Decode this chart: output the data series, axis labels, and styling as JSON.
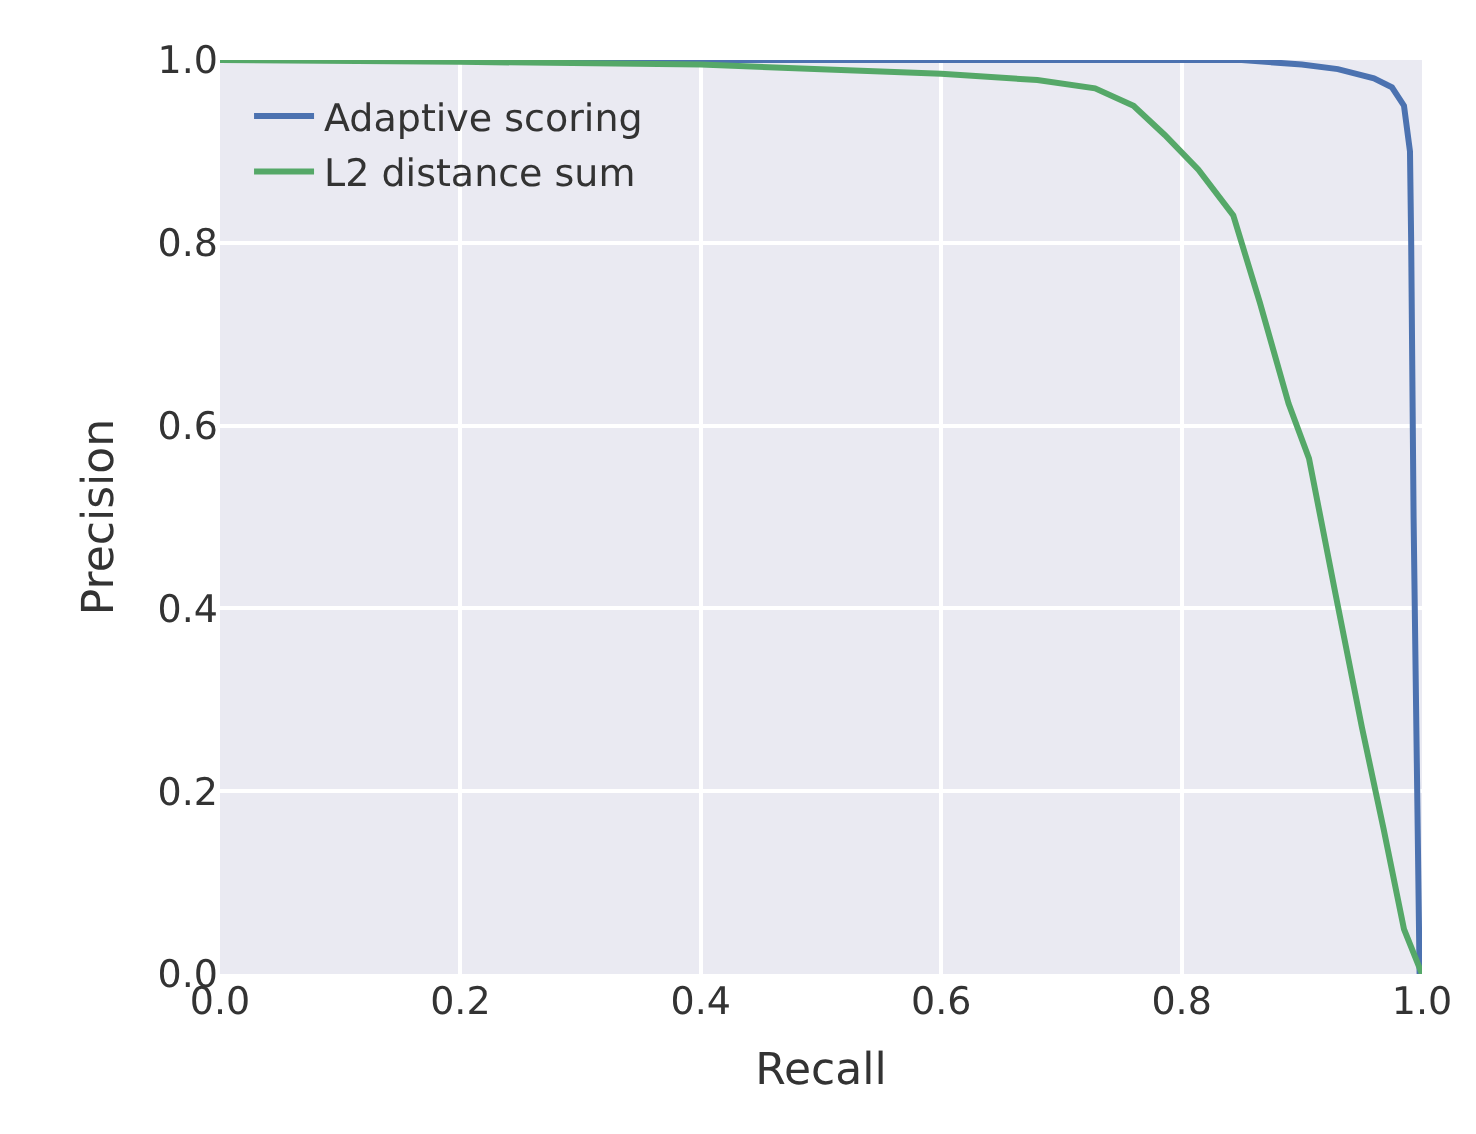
{
  "chart_data": {
    "type": "line",
    "xlabel": "Recall",
    "ylabel": "Precision",
    "xlim": [
      0,
      1
    ],
    "ylim": [
      0,
      1
    ],
    "xticks": [
      {
        "value": 0,
        "label": "0.0"
      },
      0.2,
      0.4,
      0.6,
      0.8,
      {
        "value": 1,
        "label": "1.0"
      }
    ],
    "yticks": [
      {
        "value": 0,
        "label": "0.0"
      },
      0.2,
      0.4,
      0.6,
      0.8,
      {
        "value": 1,
        "label": "1.0"
      }
    ],
    "grid": true,
    "legend": "top left",
    "series": [
      {
        "name": "Adaptive scoring",
        "color": "#4c72b0",
        "x": [
          0,
          0.2,
          0.4,
          0.6,
          0.8,
          0.85,
          0.9,
          0.93,
          0.96,
          0.975,
          0.985,
          0.99,
          0.991,
          0.993,
          0.996,
          0.998
        ],
        "values": [
          1,
          1,
          1,
          1,
          1,
          1,
          0.995,
          0.99,
          0.98,
          0.97,
          0.95,
          0.9,
          0.8,
          0.5,
          0.2,
          0
        ]
      },
      {
        "name": "L2 distance sum",
        "color": "#55a868",
        "x": [
          0,
          0.2,
          0.4,
          0.5,
          0.6,
          0.68,
          0.728,
          0.76,
          0.786,
          0.814,
          0.843,
          0.865,
          0.889,
          0.906,
          0.928,
          0.95,
          0.968,
          0.985,
          1.0
        ],
        "values": [
          1,
          0.998,
          0.995,
          0.99,
          0.985,
          0.978,
          0.969,
          0.95,
          0.918,
          0.88,
          0.83,
          0.735,
          0.624,
          0.564,
          0.416,
          0.27,
          0.159,
          0.049,
          0
        ]
      }
    ]
  }
}
